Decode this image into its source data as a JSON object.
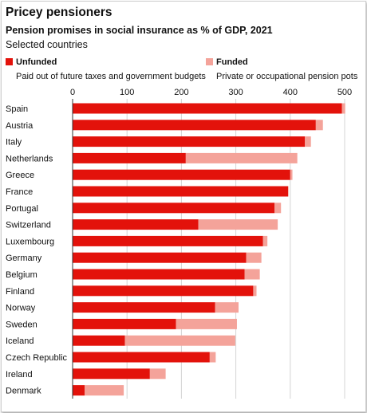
{
  "header": {
    "title": "Pricey pensioners",
    "subtitle": "Pension promises in social insurance as % of GDP, 2021",
    "note": "Selected countries"
  },
  "legend": [
    {
      "label": "Unfunded",
      "description": "Paid out of future taxes and government budgets",
      "color": "#e3120b"
    },
    {
      "label": "Funded",
      "description": "Private or occupational pension pots",
      "color": "#f4a39a"
    }
  ],
  "chart_data": {
    "type": "bar",
    "orientation": "horizontal",
    "stacked": true,
    "xlim": [
      0,
      500
    ],
    "xticks": [
      "0",
      "100",
      "200",
      "300",
      "400",
      "500"
    ],
    "grid": true,
    "legend_position": "top",
    "categories": [
      "Spain",
      "Austria",
      "Italy",
      "Netherlands",
      "Greece",
      "France",
      "Portugal",
      "Switzerland",
      "Luxembourg",
      "Germany",
      "Belgium",
      "Finland",
      "Norway",
      "Sweden",
      "Iceland",
      "Czech Republic",
      "Ireland",
      "Denmark"
    ],
    "series": [
      {
        "name": "Unfunded",
        "color": "#e3120b",
        "values": [
          495,
          447,
          427,
          208,
          400,
          396,
          371,
          231,
          350,
          319,
          316,
          332,
          262,
          190,
          96,
          252,
          142,
          22
        ]
      },
      {
        "name": "Funded",
        "color": "#f4a39a",
        "values": [
          6,
          13,
          11,
          205,
          4,
          1,
          12,
          146,
          8,
          28,
          28,
          6,
          43,
          112,
          203,
          11,
          29,
          72
        ]
      }
    ]
  }
}
